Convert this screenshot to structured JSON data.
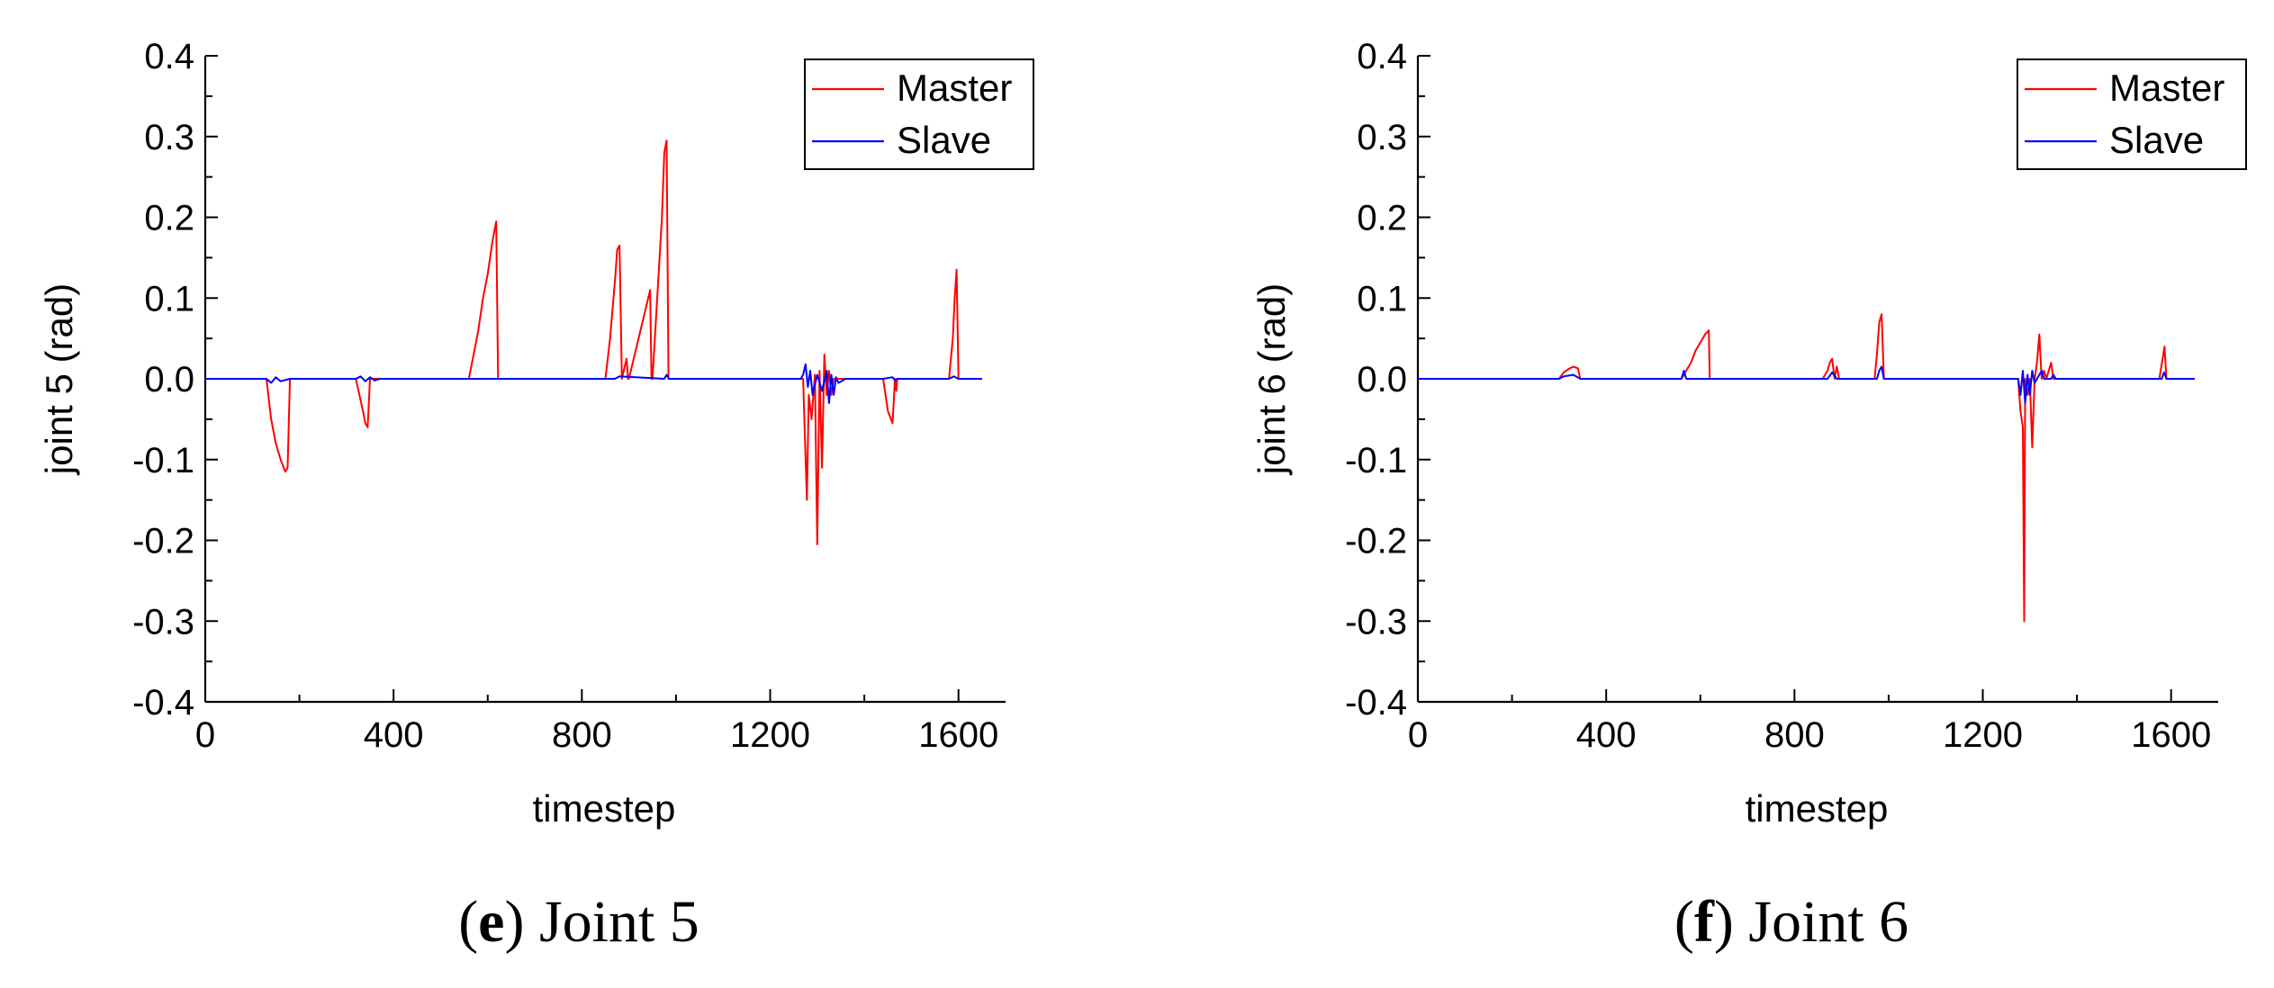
{
  "chart_data": [
    {
      "type": "line",
      "panel": "e",
      "caption": "Joint 5",
      "xlabel": "timestep",
      "ylabel": "joint 5 (rad)",
      "xlim": [
        0,
        1700
      ],
      "ylim": [
        -0.4,
        0.4
      ],
      "xticks": [
        0,
        400,
        800,
        1200,
        1600
      ],
      "yticks": [
        -0.4,
        -0.3,
        -0.2,
        -0.1,
        0.0,
        0.1,
        0.2,
        0.3,
        0.4
      ],
      "ytick_labels": [
        "-0.4",
        "-0.3",
        "-0.2",
        "-0.1",
        "0.0",
        "0.1",
        "0.2",
        "0.3",
        "0.4"
      ],
      "legend": "top-right",
      "series": [
        {
          "name": "Master",
          "color": "#ff0000",
          "x": [
            0,
            130,
            140,
            150,
            160,
            170,
            175,
            180,
            182,
            190,
            320,
            335,
            340,
            345,
            350,
            560,
            570,
            580,
            590,
            600,
            610,
            618,
            622,
            850,
            860,
            870,
            875,
            880,
            885,
            895,
            898,
            900,
            945,
            948,
            950,
            970,
            975,
            980,
            984,
            990,
            1270,
            1278,
            1282,
            1288,
            1295,
            1300,
            1305,
            1310,
            1315,
            1320,
            1325,
            1330,
            1335,
            1345,
            1440,
            1450,
            1460,
            1465,
            1468,
            1470,
            1580,
            1588,
            1592,
            1596,
            1600,
            1650
          ],
          "values": [
            0,
            0,
            -0.05,
            -0.08,
            -0.1,
            -0.115,
            -0.11,
            0,
            0,
            0,
            0,
            -0.04,
            -0.055,
            -0.06,
            0,
            0,
            0.03,
            0.06,
            0.1,
            0.13,
            0.17,
            0.195,
            0,
            0,
            0.05,
            0.12,
            0.16,
            0.165,
            0,
            0.025,
            0,
            0,
            0.11,
            0,
            0,
            0.2,
            0.28,
            0.295,
            0,
            0,
            0,
            -0.15,
            -0.02,
            -0.05,
            0.005,
            -0.205,
            0.01,
            -0.11,
            0.03,
            -0.02,
            0.01,
            -0.02,
            0,
            0,
            0,
            -0.04,
            -0.055,
            0,
            -0.015,
            0,
            0,
            0.05,
            0.1,
            0.135,
            0,
            0
          ]
        },
        {
          "name": "Slave",
          "color": "#0000ff",
          "x": [
            0,
            130,
            140,
            150,
            160,
            180,
            190,
            320,
            330,
            340,
            350,
            360,
            370,
            560,
            620,
            870,
            880,
            975,
            980,
            985,
            1265,
            1270,
            1275,
            1280,
            1285,
            1290,
            1300,
            1310,
            1320,
            1325,
            1330,
            1335,
            1340,
            1345,
            1360,
            1440,
            1460,
            1465,
            1470,
            1580,
            1590,
            1600,
            1650
          ],
          "values": [
            0,
            0,
            -0.005,
            0.002,
            -0.003,
            0,
            0,
            0,
            0.003,
            -0.003,
            0.002,
            -0.002,
            0,
            0,
            0,
            0,
            0.003,
            0,
            0.005,
            0,
            0,
            0.005,
            0.018,
            -0.01,
            0.01,
            -0.02,
            0.005,
            -0.015,
            0.01,
            -0.03,
            0.005,
            -0.02,
            0.002,
            -0.005,
            0,
            0,
            0.002,
            -0.002,
            0,
            0,
            0.003,
            0,
            0
          ]
        }
      ]
    },
    {
      "type": "line",
      "panel": "f",
      "caption": "Joint 6",
      "xlabel": "timestep",
      "ylabel": "joint 6 (rad)",
      "xlim": [
        0,
        1700
      ],
      "ylim": [
        -0.4,
        0.4
      ],
      "xticks": [
        0,
        400,
        800,
        1200,
        1600
      ],
      "yticks": [
        -0.4,
        -0.3,
        -0.2,
        -0.1,
        0.0,
        0.1,
        0.2,
        0.3,
        0.4
      ],
      "ytick_labels": [
        "-0.4",
        "-0.3",
        "-0.2",
        "-0.1",
        "0.0",
        "0.1",
        "0.2",
        "0.3",
        "0.4"
      ],
      "legend": "top-right",
      "series": [
        {
          "name": "Master",
          "color": "#ff0000",
          "x": [
            0,
            300,
            310,
            320,
            330,
            340,
            345,
            560,
            570,
            580,
            590,
            600,
            610,
            618,
            620,
            860,
            870,
            875,
            880,
            885,
            890,
            895,
            900,
            970,
            975,
            980,
            985,
            990,
            1275,
            1280,
            1285,
            1288,
            1290,
            1295,
            1300,
            1305,
            1310,
            1315,
            1320,
            1325,
            1330,
            1335,
            1345,
            1350,
            1355,
            1575,
            1582,
            1586,
            1590,
            1650
          ],
          "values": [
            0,
            0,
            0.008,
            0.012,
            0.015,
            0.013,
            0,
            0,
            0.01,
            0.02,
            0.035,
            0.045,
            0.055,
            0.06,
            0,
            0,
            0.01,
            0.02,
            0.025,
            0,
            0.015,
            0,
            0,
            0,
            0.03,
            0.07,
            0.08,
            0,
            0,
            -0.04,
            -0.06,
            -0.3,
            0,
            -0.02,
            0,
            -0.085,
            0,
            0.02,
            0.055,
            0,
            0.01,
            0,
            0.02,
            0,
            0,
            0,
            0.025,
            0.04,
            0,
            0
          ]
        },
        {
          "name": "Slave",
          "color": "#0000ff",
          "x": [
            0,
            300,
            310,
            330,
            345,
            560,
            565,
            570,
            620,
            870,
            880,
            890,
            975,
            980,
            985,
            990,
            1275,
            1280,
            1285,
            1290,
            1295,
            1300,
            1305,
            1310,
            1320,
            1325,
            1330,
            1345,
            1350,
            1355,
            1580,
            1585,
            1590,
            1650
          ],
          "values": [
            0,
            0,
            0.003,
            0.005,
            0,
            0,
            0.01,
            0,
            0,
            0,
            0.008,
            0,
            0,
            0.01,
            0.015,
            0,
            0,
            -0.02,
            0.01,
            -0.03,
            0.005,
            -0.02,
            0.01,
            -0.005,
            0.005,
            0.01,
            0,
            0,
            0.005,
            0,
            0,
            0.008,
            0,
            0
          ]
        }
      ]
    }
  ]
}
